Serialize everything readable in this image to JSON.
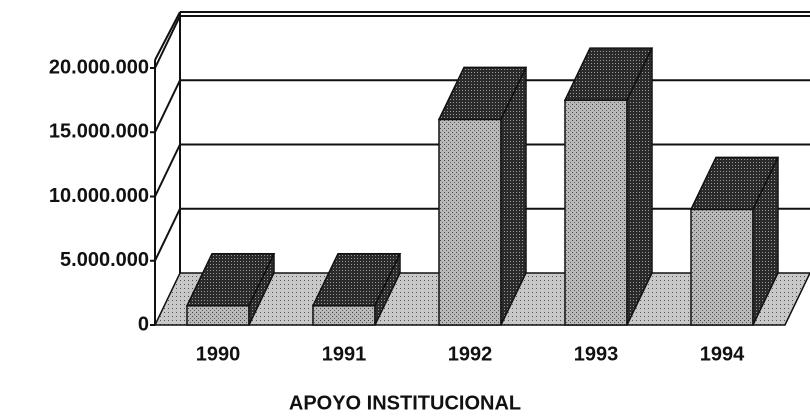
{
  "chart_data": {
    "type": "bar3d",
    "x_label": "APOYO INSTITUCIONAL",
    "categories": [
      "1990",
      "1991",
      "1992",
      "1993",
      "1994"
    ],
    "values": [
      1500000,
      1500000,
      16000000,
      17500000,
      9000000
    ],
    "ylim": [
      0,
      20000000
    ],
    "yticks": [
      0,
      {
        "value": 5000000,
        "label": "5.000.000"
      },
      {
        "value": 10000000,
        "label": "10.000.000"
      },
      {
        "value": 15000000,
        "label": "15.000.000"
      },
      {
        "value": 20000000,
        "label": "20.000.000"
      }
    ],
    "grid": true
  }
}
